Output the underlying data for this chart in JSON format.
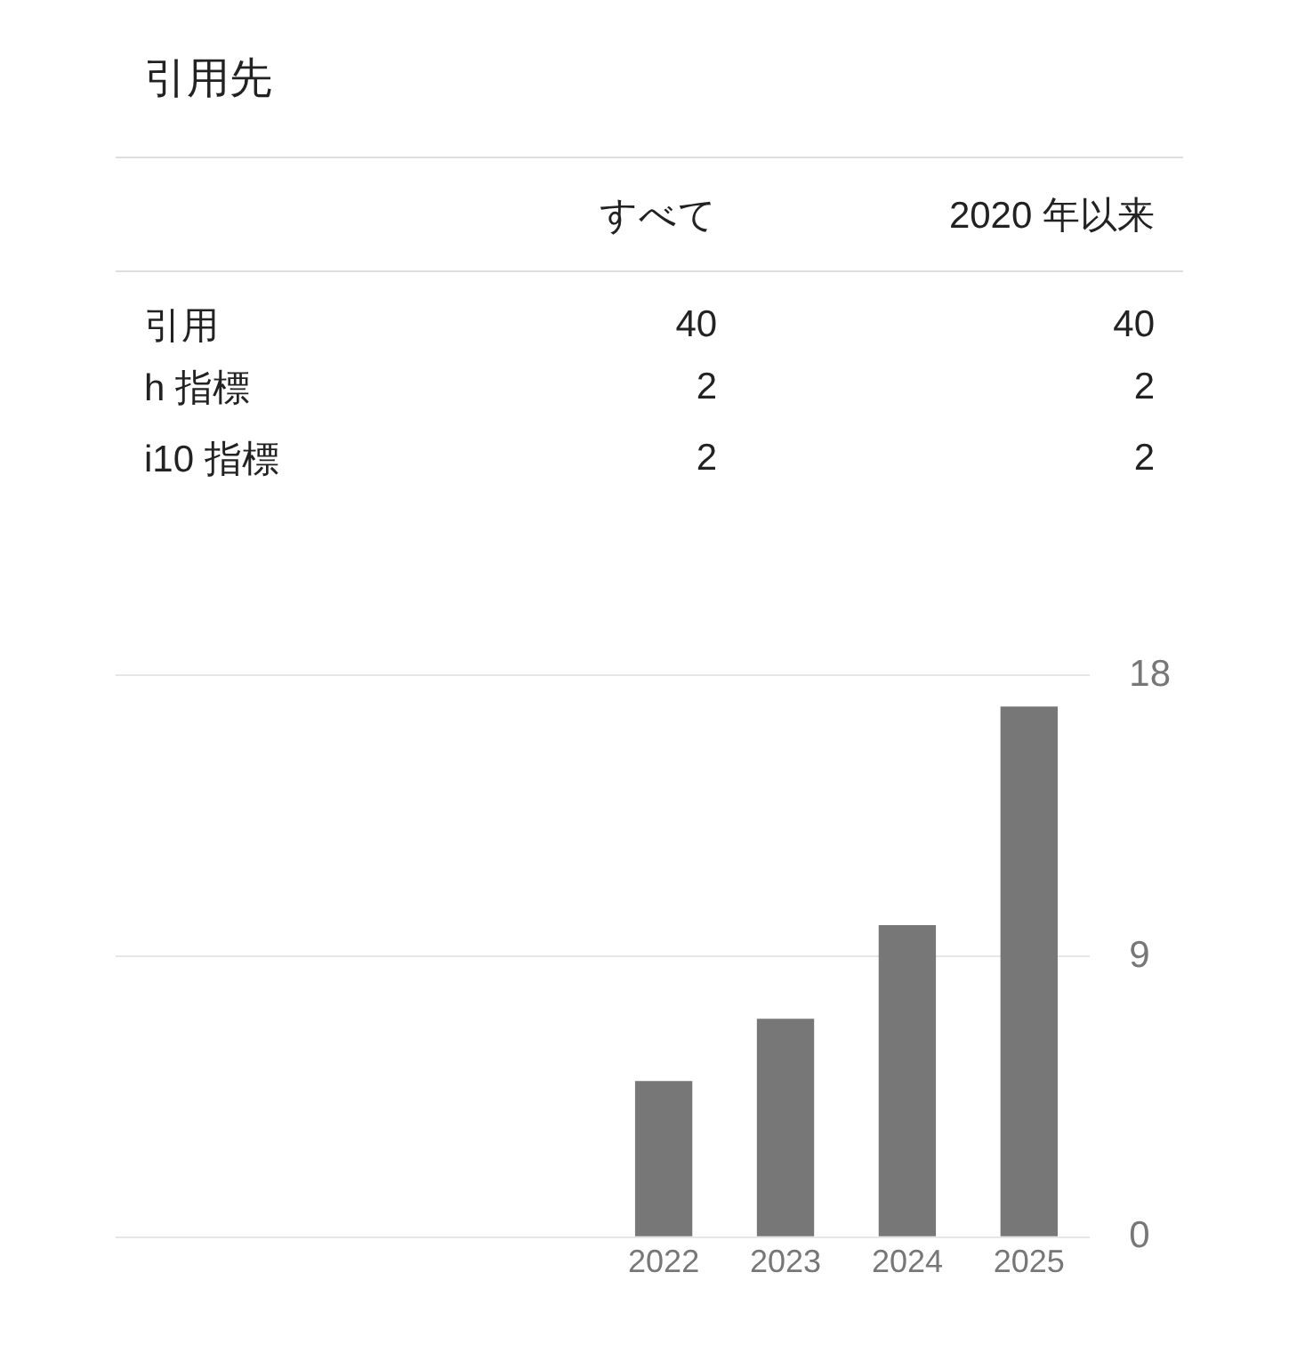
{
  "chart_data": [
    {
      "type": "other",
      "title": "引用先",
      "categories": [
        "引用",
        "h 指標",
        "i10 指標"
      ],
      "series": [
        {
          "name": "すべて",
          "values": [
            40,
            2,
            2
          ]
        },
        {
          "name": "2020 年以来",
          "values": [
            40,
            2,
            2
          ]
        }
      ],
      "data_labels": true
    },
    {
      "type": "bar",
      "categories": [
        null,
        null,
        null,
        null,
        "2022",
        "2023",
        "2024",
        "2025"
      ],
      "values": [
        null,
        null,
        null,
        null,
        5,
        7,
        10,
        17
      ],
      "color": "#777777",
      "ylim": [
        0,
        18
      ],
      "yticks": [
        0,
        9,
        18
      ],
      "grid": "y",
      "legend": false
    }
  ]
}
